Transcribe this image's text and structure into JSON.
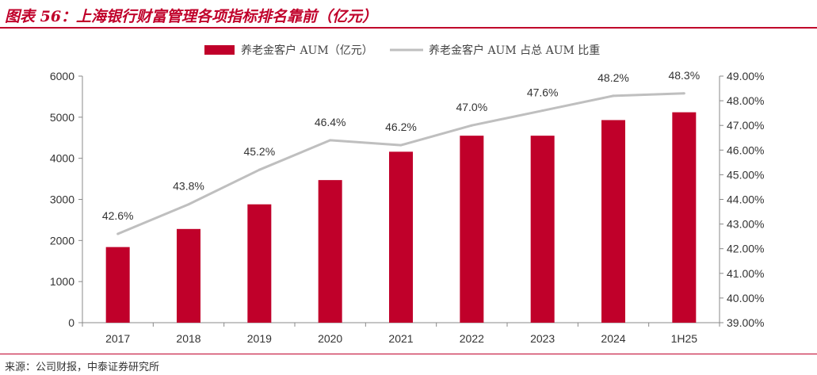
{
  "header": {
    "title": "图表 56：上海银行财富管理各项指标排名靠前（亿元）"
  },
  "footer": {
    "source": "来源：公司财报，中泰证券研究所"
  },
  "colors": {
    "accent": "#c0002a",
    "bar": "#c0002a",
    "line": "#bfbfbf",
    "axis": "#888888"
  },
  "chart_data": {
    "type": "bar",
    "title": "图表 56：上海银行财富管理各项指标排名靠前（亿元）",
    "categories": [
      "2017",
      "2018",
      "2019",
      "2020",
      "2021",
      "2022",
      "2023",
      "2024",
      "1H25"
    ],
    "series": [
      {
        "name": "养老金客户 AUM（亿元）",
        "type": "bar",
        "axis": "left",
        "values": [
          1840,
          2280,
          2880,
          3470,
          4160,
          4550,
          4550,
          4930,
          5120
        ]
      },
      {
        "name": "养老金客户 AUM 占总 AUM 比重",
        "type": "line",
        "axis": "right",
        "values": [
          42.6,
          43.8,
          45.2,
          46.4,
          46.2,
          47.0,
          47.6,
          48.2,
          48.3
        ],
        "labels": [
          "42.6%",
          "43.8%",
          "45.2%",
          "46.4%",
          "46.2%",
          "47.0%",
          "47.6%",
          "48.2%",
          "48.3%"
        ]
      }
    ],
    "y_left": {
      "lim": [
        0,
        6000
      ],
      "ticks": [
        "0",
        "1000",
        "2000",
        "3000",
        "4000",
        "5000",
        "6000"
      ]
    },
    "y_right": {
      "lim": [
        39,
        49
      ],
      "ticks": [
        "39.00%",
        "40.00%",
        "41.00%",
        "42.00%",
        "43.00%",
        "44.00%",
        "45.00%",
        "46.00%",
        "47.00%",
        "48.00%",
        "49.00%"
      ]
    },
    "legend_position": "top-center",
    "grid": false
  }
}
